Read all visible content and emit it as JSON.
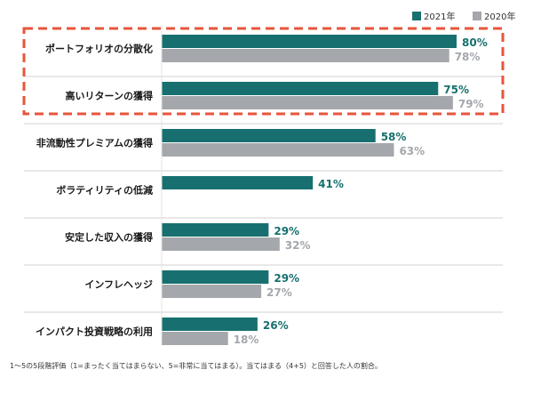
{
  "chart_data": {
    "type": "bar",
    "orientation": "horizontal",
    "categories": [
      "ポートフォリオの分散化",
      "高いリターンの獲得",
      "非流動性プレミアムの獲得",
      "ボラティリティの低減",
      "安定した収入の獲得",
      "インフレヘッジ",
      "インパクト投資戦略の利用"
    ],
    "series": [
      {
        "name": "2021年",
        "color": "#17706f",
        "values": [
          80,
          75,
          58,
          41,
          29,
          29,
          26
        ]
      },
      {
        "name": "2020年",
        "color": "#a4a7ab",
        "values": [
          78,
          79,
          63,
          null,
          32,
          27,
          18
        ]
      }
    ],
    "value_suffix": "%",
    "xlim": [
      0,
      100
    ],
    "legend_position": "top-right",
    "grid": false,
    "highlight": {
      "categories": [
        0,
        1
      ],
      "color": "#e8553a",
      "style": "dashed"
    },
    "footnote": "1〜5の5段階評価（1=まったく当てはまらない、5=非常に当てはまる）。当てはまる（4+5）と回答した人の割合。"
  }
}
